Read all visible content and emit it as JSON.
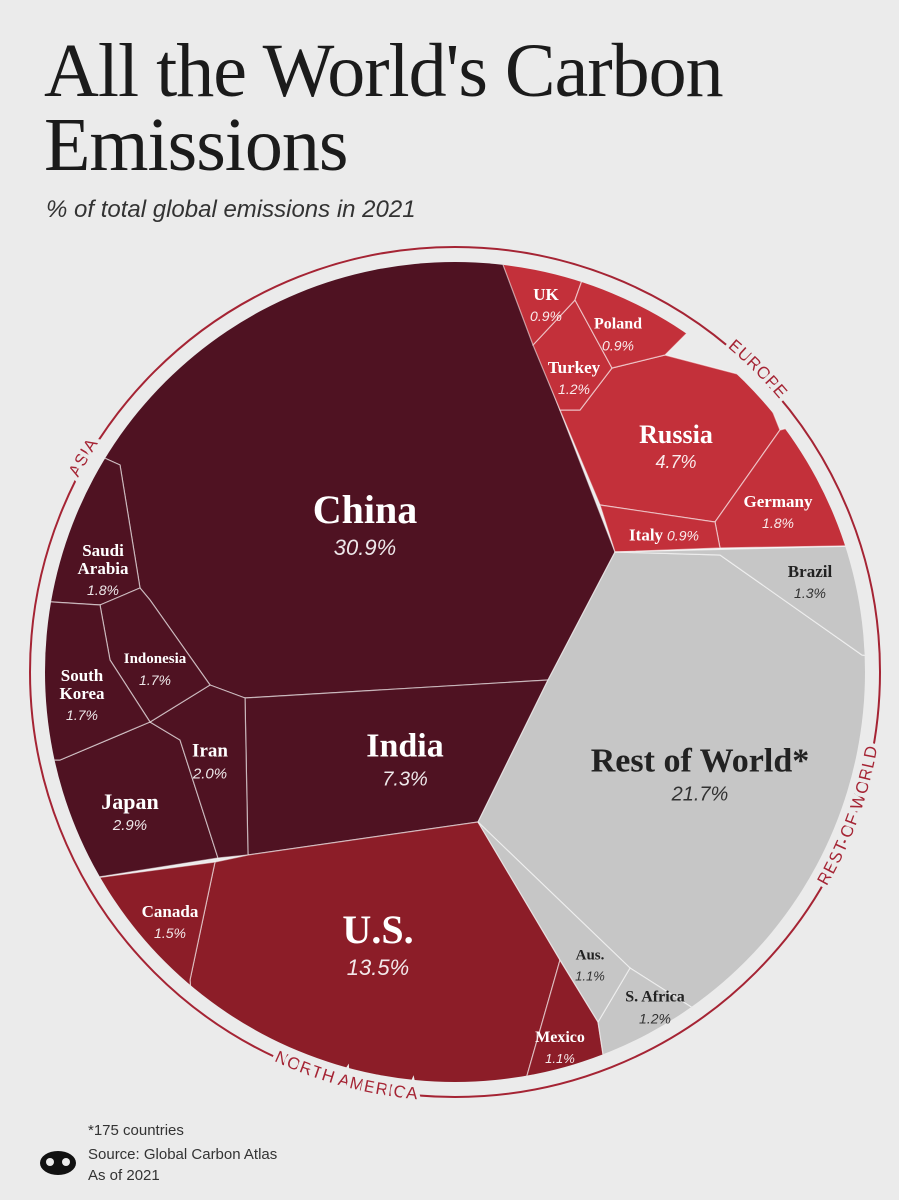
{
  "chart_data": {
    "type": "voronoi",
    "title": "All the World's Carbon Emissions",
    "subtitle": "% of total global emissions in 2021",
    "series": [
      {
        "name": "ASIA",
        "color": "#4f1222",
        "categories": [
          "China",
          "India",
          "Japan",
          "Iran",
          "Saudi Arabia",
          "Indonesia",
          "South Korea"
        ],
        "values": [
          30.9,
          7.3,
          2.9,
          2.0,
          1.8,
          1.7,
          1.7
        ],
        "value_labels": [
          "30.9%",
          "7.3%",
          "2.9%",
          "2.0%",
          "1.8%",
          "1.7%",
          "1.7%"
        ]
      },
      {
        "name": "EUROPE",
        "color": "#c3303a",
        "categories": [
          "Russia",
          "Germany",
          "Turkey",
          "UK",
          "Poland",
          "Italy"
        ],
        "values": [
          4.7,
          1.8,
          1.2,
          0.9,
          0.9,
          0.9
        ],
        "value_labels": [
          "4.7%",
          "1.8%",
          "1.2%",
          "0.9%",
          "0.9%",
          "0.9%"
        ]
      },
      {
        "name": "NORTH AMERICA",
        "color": "#8c1d28",
        "categories": [
          "U.S.",
          "Canada",
          "Mexico"
        ],
        "values": [
          13.5,
          1.5,
          1.1
        ],
        "value_labels": [
          "13.5%",
          "1.5%",
          "1.1%"
        ]
      },
      {
        "name": "REST OF WORLD",
        "color": "#c6c6c6",
        "categories": [
          "Rest of World*",
          "Brazil",
          "S. Africa",
          "Aus."
        ],
        "values": [
          21.7,
          1.3,
          1.2,
          1.1
        ],
        "value_labels": [
          "21.7%",
          "1.3%",
          "1.2%",
          "1.1%"
        ]
      }
    ],
    "footnote": "*175 countries",
    "source": "Source: Global Carbon Atlas",
    "date_note": "As of 2021"
  }
}
